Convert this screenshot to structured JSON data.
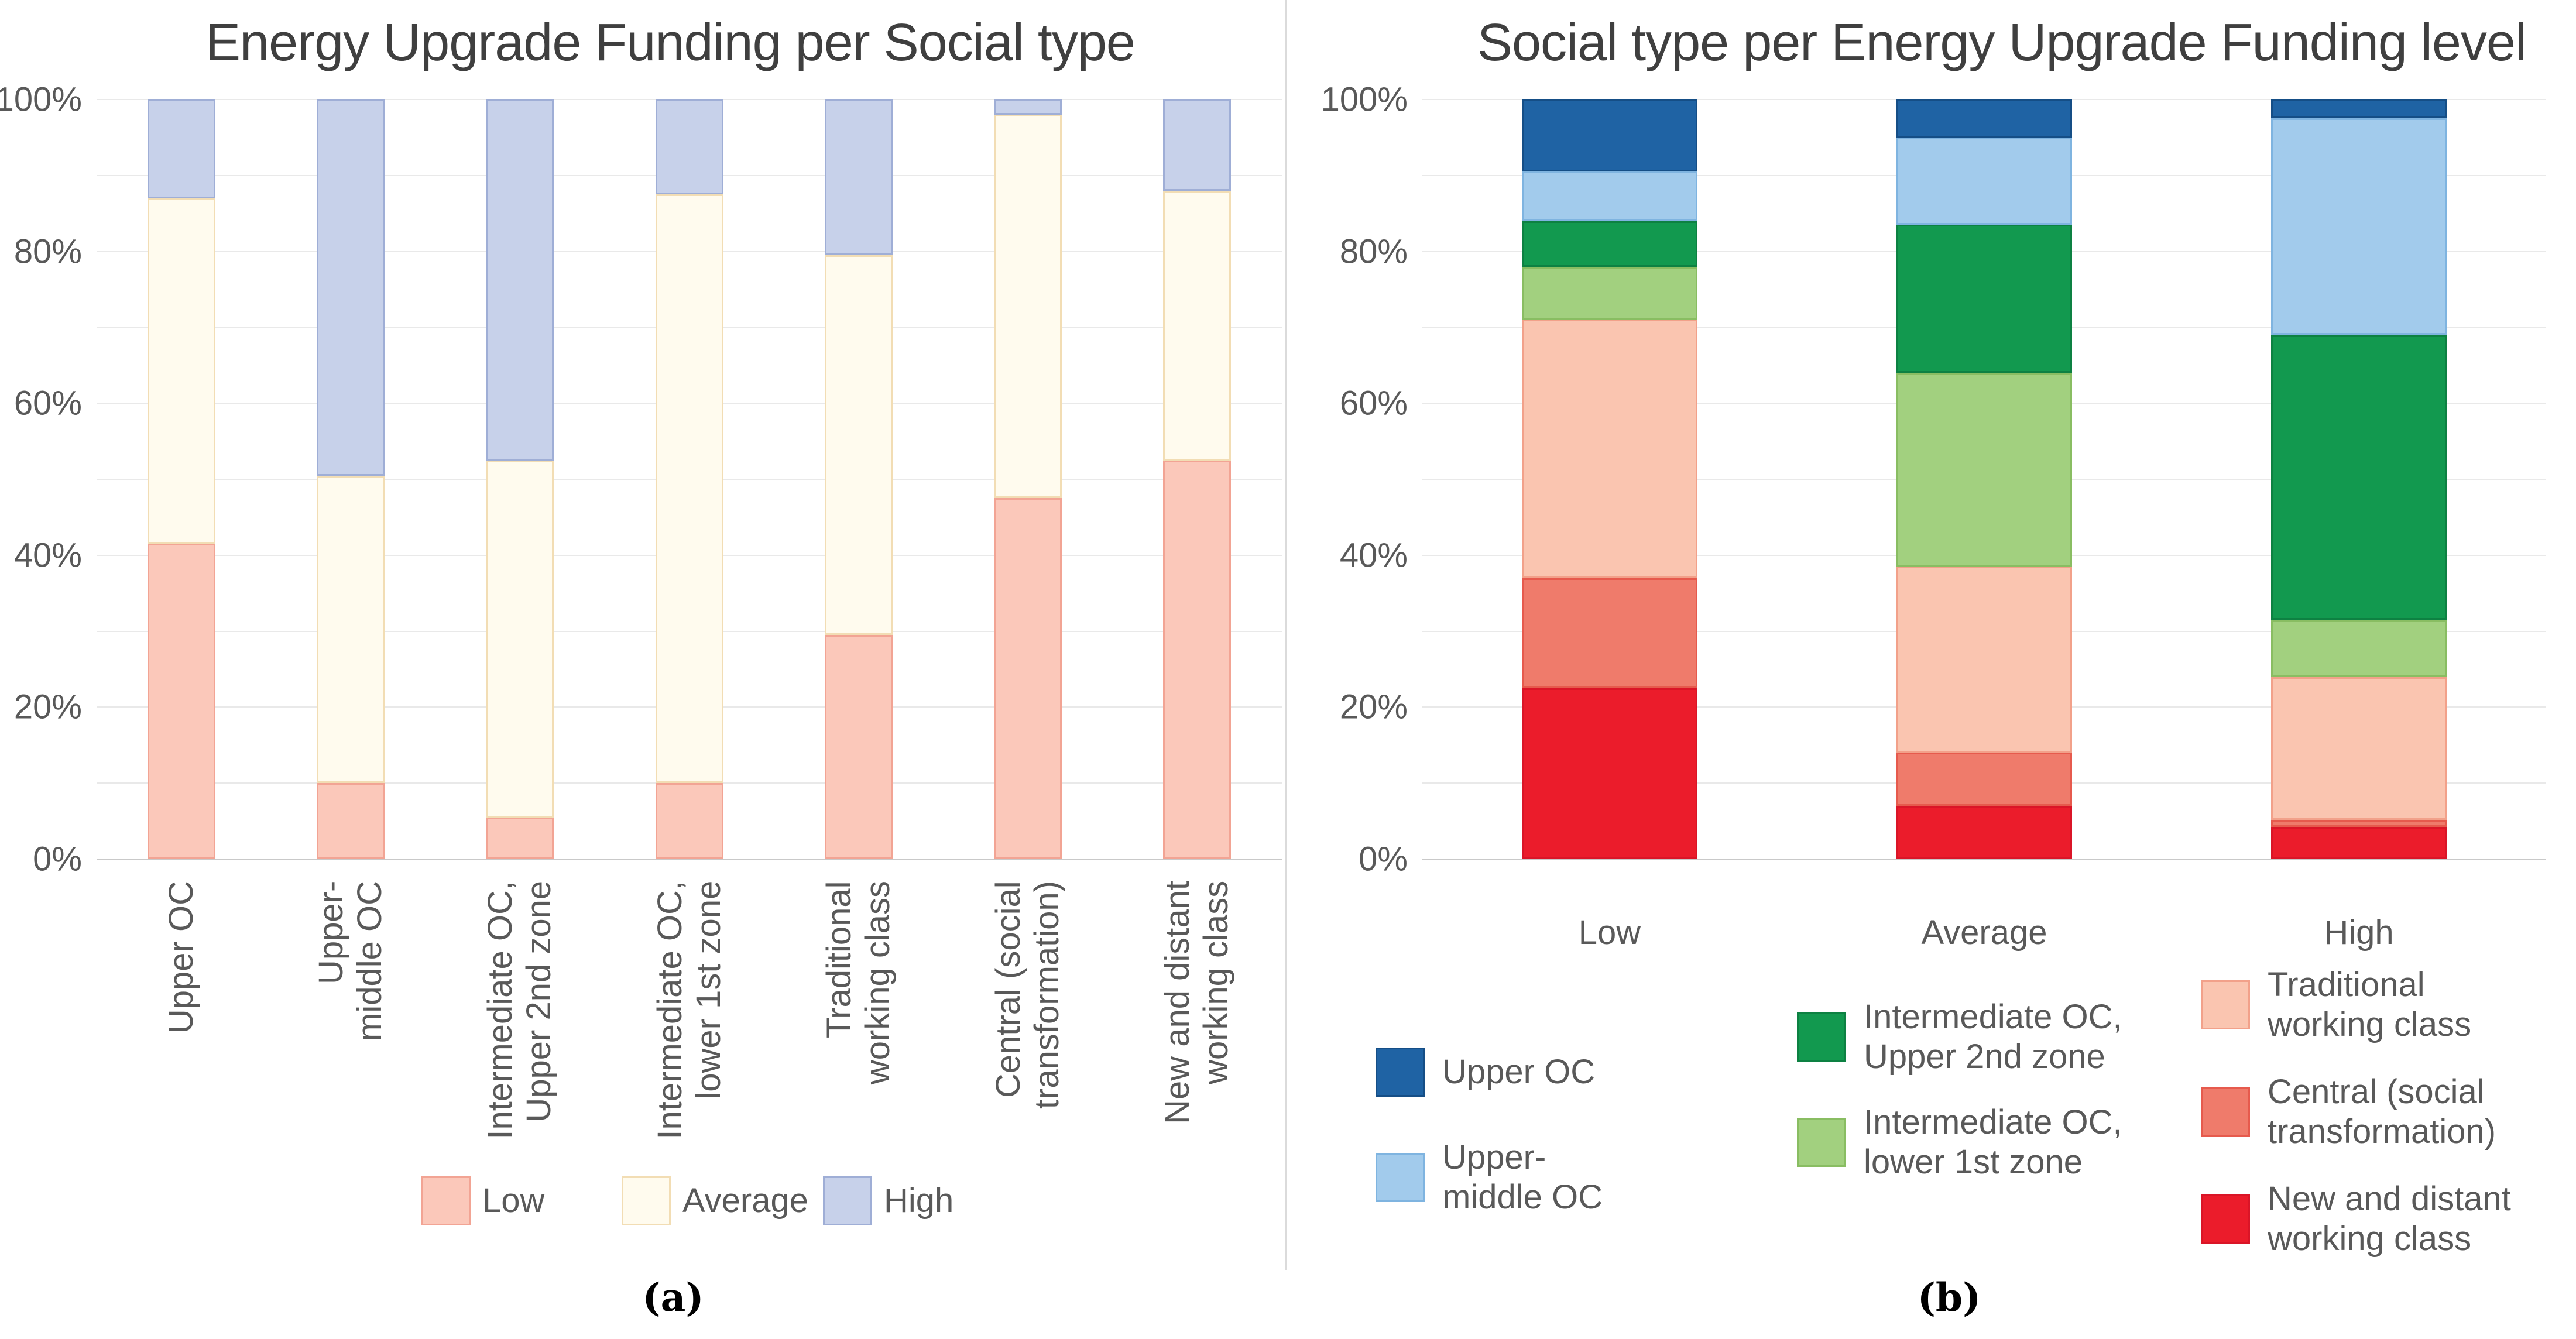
{
  "figure": {
    "panels": [
      {
        "title": "Energy Upgrade Funding per Social type",
        "caption": "(a)"
      },
      {
        "title": "Social type per Energy Upgrade Funding level",
        "caption": "(b)"
      }
    ]
  },
  "chart_data": [
    {
      "type": "bar",
      "stacked": true,
      "unit": "percent",
      "title": "Energy Upgrade Funding per Social type",
      "xlabel": "",
      "ylabel": "",
      "ylim": [
        0,
        100
      ],
      "grid_step": 10,
      "grid": true,
      "y_tick_labels": [
        "0%",
        "20%",
        "40%",
        "60%",
        "80%",
        "100%"
      ],
      "legend_position": "bottom",
      "categories": [
        "Upper OC",
        "Upper-middle OC",
        "Intermediate OC, Upper 2nd zone",
        "Intermediate OC, lower 1st zone",
        "Traditional working class",
        "Central (social transformation)",
        "New and distant working class"
      ],
      "category_label_lines": [
        [
          "Upper OC"
        ],
        [
          "Upper-",
          "middle OC"
        ],
        [
          "Intermediate OC,",
          "Upper 2nd zone"
        ],
        [
          "Intermediate OC,",
          "lower 1st zone"
        ],
        [
          "Traditional",
          "working class"
        ],
        [
          "Central (social",
          "transformation)"
        ],
        [
          "New and distant",
          "working class"
        ]
      ],
      "series": [
        {
          "name": "Low",
          "color": "#FBC8BA",
          "border_color": "#F2A494",
          "values": [
            41.5,
            10,
            5.5,
            10,
            29.5,
            47.5,
            52.5
          ]
        },
        {
          "name": "Average",
          "color": "#FFFBEE",
          "border_color": "#F2DDB4",
          "values": [
            45.5,
            40.5,
            47,
            77.5,
            50,
            50.5,
            35.5
          ]
        },
        {
          "name": "High",
          "color": "#C7D1EA",
          "border_color": "#9FAED6",
          "values": [
            13,
            49.5,
            47.5,
            12.5,
            20.5,
            2,
            12
          ]
        }
      ],
      "legend_order": [
        "Low",
        "Average",
        "High"
      ]
    },
    {
      "type": "bar",
      "stacked": true,
      "unit": "percent",
      "title": "Social type per Energy Upgrade Funding level",
      "xlabel": "",
      "ylabel": "",
      "ylim": [
        0,
        100
      ],
      "grid_step": 10,
      "grid": true,
      "y_tick_labels": [
        "0%",
        "20%",
        "40%",
        "60%",
        "80%",
        "100%"
      ],
      "legend_position": "bottom",
      "categories": [
        "Low",
        "Average",
        "High"
      ],
      "series": [
        {
          "name": "New and distant working class",
          "color": "#EB1C2B",
          "border_color": "#DA1527",
          "values": [
            22.5,
            7,
            4.2
          ]
        },
        {
          "name": "Central (social transformation)",
          "color": "#EF7B6B",
          "border_color": "#E65A4D",
          "values": [
            14.5,
            7,
            1
          ]
        },
        {
          "name": "Traditional working class",
          "color": "#FAC5B0",
          "border_color": "#F2A18A",
          "values": [
            34,
            24.5,
            18.8
          ]
        },
        {
          "name": "Intermediate OC, lower 1st zone",
          "color": "#A2D07F",
          "border_color": "#89BD62",
          "values": [
            7,
            25.5,
            7.5
          ]
        },
        {
          "name": "Intermediate OC, Upper 2nd zone",
          "color": "#12994F",
          "border_color": "#0D8142",
          "values": [
            6,
            19.5,
            37.5
          ]
        },
        {
          "name": "Upper-middle OC",
          "color": "#A2CBEC",
          "border_color": "#7FB4E0",
          "values": [
            6.5,
            11.5,
            28.5
          ]
        },
        {
          "name": "Upper OC",
          "color": "#1F63A4",
          "border_color": "#154E86",
          "values": [
            9.5,
            5,
            2.5
          ]
        }
      ],
      "legend_columns": [
        [
          "Upper OC",
          "Upper-middle OC"
        ],
        [
          "Intermediate OC, Upper 2nd zone",
          "Intermediate OC, lower 1st zone"
        ],
        [
          "Traditional working class",
          "Central (social transformation)",
          "New and distant working class"
        ]
      ],
      "legend_label_lines": {
        "Upper OC": [
          "Upper OC"
        ],
        "Upper-middle OC": [
          "Upper-",
          "middle OC"
        ],
        "Intermediate OC, Upper 2nd zone": [
          "Intermediate OC,",
          "Upper 2nd zone"
        ],
        "Intermediate OC, lower 1st zone": [
          "Intermediate OC,",
          "lower 1st zone"
        ],
        "Traditional working class": [
          "Traditional",
          "working class"
        ],
        "Central (social transformation)": [
          "Central (social",
          "transformation)"
        ],
        "New and distant working class": [
          "New and distant",
          "working class"
        ]
      }
    }
  ]
}
